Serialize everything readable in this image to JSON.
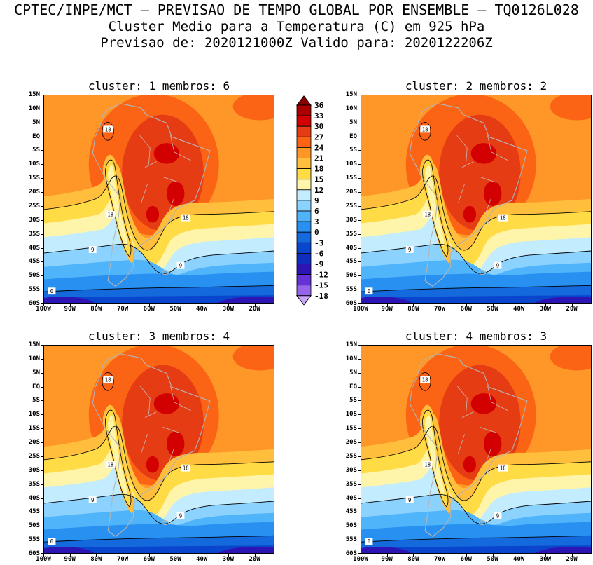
{
  "header": {
    "line1": "CPTEC/INPE/MCT — PREVISAO DE TEMPO GLOBAL POR ENSEMBLE — TQ0126L028",
    "line2": "Cluster Medio para a Temperatura (C) em 925 hPa",
    "line3": "Previsao de: 2020121000Z   Valido para: 2020122206Z"
  },
  "panels": [
    {
      "title": "cluster: 1   membros: 6"
    },
    {
      "title": "cluster: 2   membros: 2"
    },
    {
      "title": "cluster: 3   membros: 4"
    },
    {
      "title": "cluster: 4   membros: 3"
    }
  ],
  "axes": {
    "lat_labels": [
      "15N",
      "10N",
      "5N",
      "EQ",
      "5S",
      "10S",
      "15S",
      "20S",
      "25S",
      "30S",
      "35S",
      "40S",
      "45S",
      "50S",
      "55S",
      "60S"
    ],
    "lon_labels": [
      "100W",
      "90W",
      "80W",
      "70W",
      "60W",
      "50W",
      "40W",
      "30W",
      "20W"
    ]
  },
  "colorbar": {
    "levels": [
      36,
      33,
      30,
      27,
      24,
      21,
      18,
      15,
      12,
      9,
      6,
      3,
      0,
      -3,
      -6,
      -9,
      -12,
      -15,
      -18
    ],
    "colors": [
      "#870000",
      "#aa0000",
      "#d20000",
      "#e63c14",
      "#fa6414",
      "#ff9628",
      "#ffbe3c",
      "#ffdc46",
      "#fff5aa",
      "#c3ecff",
      "#8cd2ff",
      "#50b4fa",
      "#2890f0",
      "#1469dc",
      "#0a46cd",
      "#0f2dbe",
      "#2d14b4",
      "#6432d7",
      "#9664eb",
      "#c8a5f5"
    ]
  },
  "map_labels": {
    "l18": "18",
    "l9": "9",
    "l0": "0"
  },
  "map_colors": {
    "coastline": "#b4b4b4",
    "contour": "#000000"
  },
  "chart_data": {
    "type": "heatmap",
    "title": "Cluster Medio para a Temperatura (C) em 925 hPa",
    "suptitle": "CPTEC/INPE/MCT — PREVISAO DE TEMPO GLOBAL POR ENSEMBLE — TQ0126L028",
    "init_time": "2020121000Z",
    "valid_time": "2020122206Z",
    "variable": "Temperatura",
    "units": "C",
    "level": "925 hPa",
    "model": "TQ0126L028",
    "panels": [
      {
        "cluster": 1,
        "membros": 6
      },
      {
        "cluster": 2,
        "membros": 2
      },
      {
        "cluster": 3,
        "membros": 4
      },
      {
        "cluster": 4,
        "membros": 3
      }
    ],
    "x_ticks": [
      "100W",
      "90W",
      "80W",
      "70W",
      "60W",
      "50W",
      "40W",
      "30W",
      "20W"
    ],
    "y_ticks": [
      "15N",
      "10N",
      "5N",
      "EQ",
      "5S",
      "10S",
      "15S",
      "20S",
      "25S",
      "30S",
      "35S",
      "40S",
      "45S",
      "50S",
      "55S",
      "60S"
    ],
    "contour_levels_c": [
      -18,
      -15,
      -12,
      -9,
      -6,
      -3,
      0,
      3,
      6,
      9,
      12,
      15,
      18,
      21,
      24,
      27,
      30,
      33,
      36
    ],
    "labeled_contours_c": [
      18,
      9,
      0
    ],
    "colorbar_range": [
      -18,
      36
    ],
    "legend_position": "between-top-panels",
    "grid": false,
    "region": "South America, 100W-20W / 15N-60S"
  }
}
